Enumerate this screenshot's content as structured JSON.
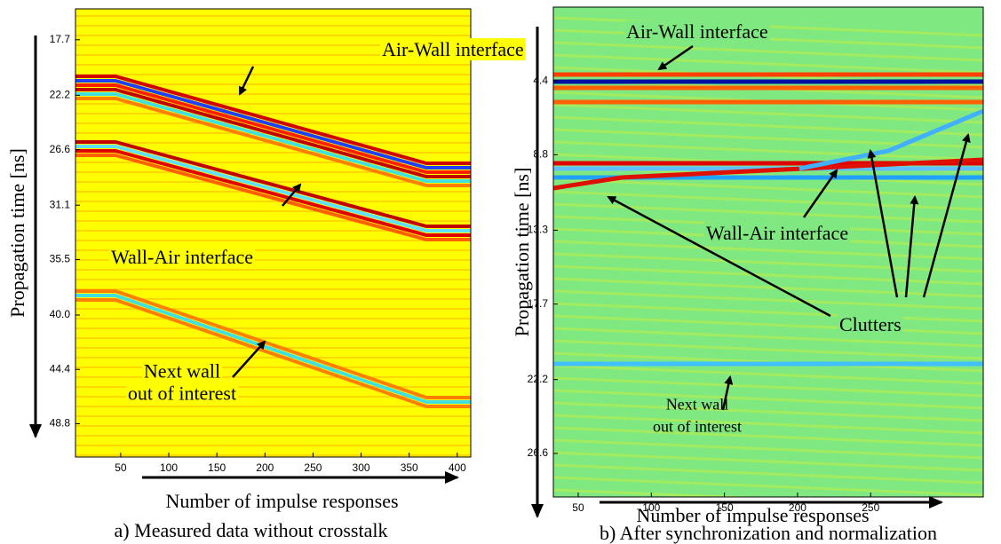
{
  "chart_data": [
    {
      "type": "heatmap",
      "caption": "a) Measured data without crosstalk",
      "xlabel": "Number of impulse responses",
      "ylabel": "Propagation time [ns]",
      "xlim": [
        3,
        414
      ],
      "xticks": [
        50,
        100,
        150,
        200,
        250,
        300,
        350,
        400
      ],
      "ylim": [
        15.2,
        51.5
      ],
      "y_inverted": true,
      "yticks": [
        17.7,
        22.2,
        26.6,
        31.1,
        35.5,
        {
          "value": 40,
          "label": "40.0"
        },
        44.4,
        48.8
      ],
      "background": "#ffff00",
      "annotations": [
        [
          "Air-Wall interface"
        ],
        [
          "Wall-Air interface"
        ],
        [
          "Next wall",
          "out of interest"
        ]
      ]
    },
    {
      "type": "heatmap",
      "caption": "b) After synchronization and normalization",
      "xlabel": "Number of impulse responses",
      "ylabel": "Propagation time [ns]",
      "xlim": [
        33,
        327
      ],
      "xticks": [
        50,
        100,
        150,
        200,
        250
      ],
      "ylim": [
        0,
        29.2
      ],
      "y_inverted": true,
      "yticks": [
        4.4,
        8.8,
        13.3,
        17.7,
        22.2,
        26.6
      ],
      "background": "#80e880",
      "annotations": [
        [
          "Air-Wall interface"
        ],
        [
          "Wall-Air interface"
        ],
        [
          "Clutters"
        ],
        [
          "Next wall",
          "out of interest"
        ]
      ]
    }
  ]
}
